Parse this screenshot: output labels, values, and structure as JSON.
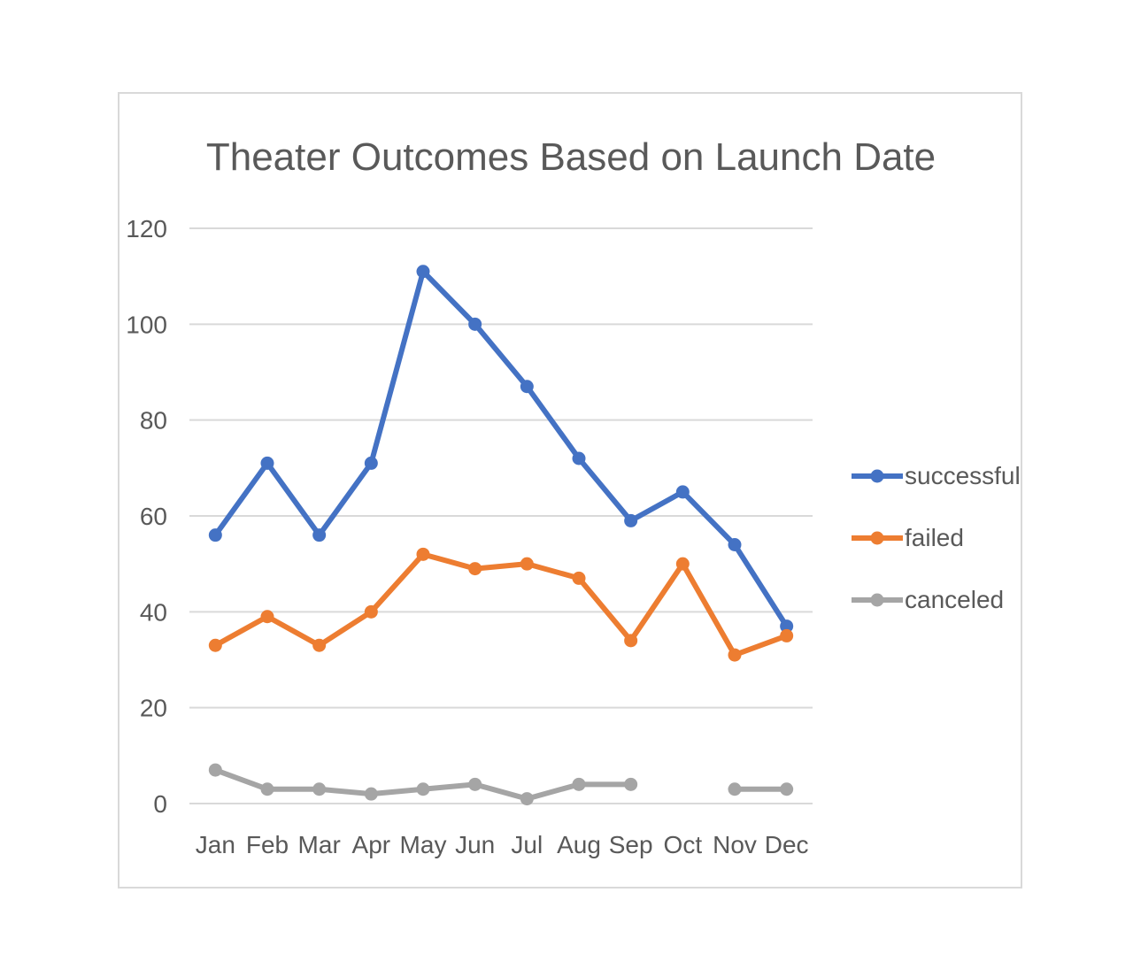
{
  "chart_data": {
    "type": "line",
    "title": "Theater Outcomes Based on Launch Date",
    "categories": [
      "Jan",
      "Feb",
      "Mar",
      "Apr",
      "May",
      "Jun",
      "Jul",
      "Aug",
      "Sep",
      "Oct",
      "Nov",
      "Dec"
    ],
    "ylim": [
      0,
      120
    ],
    "yticks": [
      "0",
      "20",
      "40",
      "60",
      "80",
      "100",
      "120"
    ],
    "grid": true,
    "legend_position": "right",
    "series": [
      {
        "name": "successful",
        "color": "#4472c4",
        "values": [
          56,
          71,
          56,
          71,
          111,
          100,
          87,
          72,
          59,
          65,
          54,
          37
        ]
      },
      {
        "name": "failed",
        "color": "#ed7d31",
        "values": [
          33,
          39,
          33,
          40,
          52,
          49,
          50,
          47,
          34,
          50,
          31,
          35
        ]
      },
      {
        "name": "canceled",
        "color": "#a5a5a5",
        "values": [
          7,
          3,
          3,
          2,
          3,
          4,
          1,
          4,
          4,
          null,
          3,
          3
        ]
      }
    ]
  }
}
